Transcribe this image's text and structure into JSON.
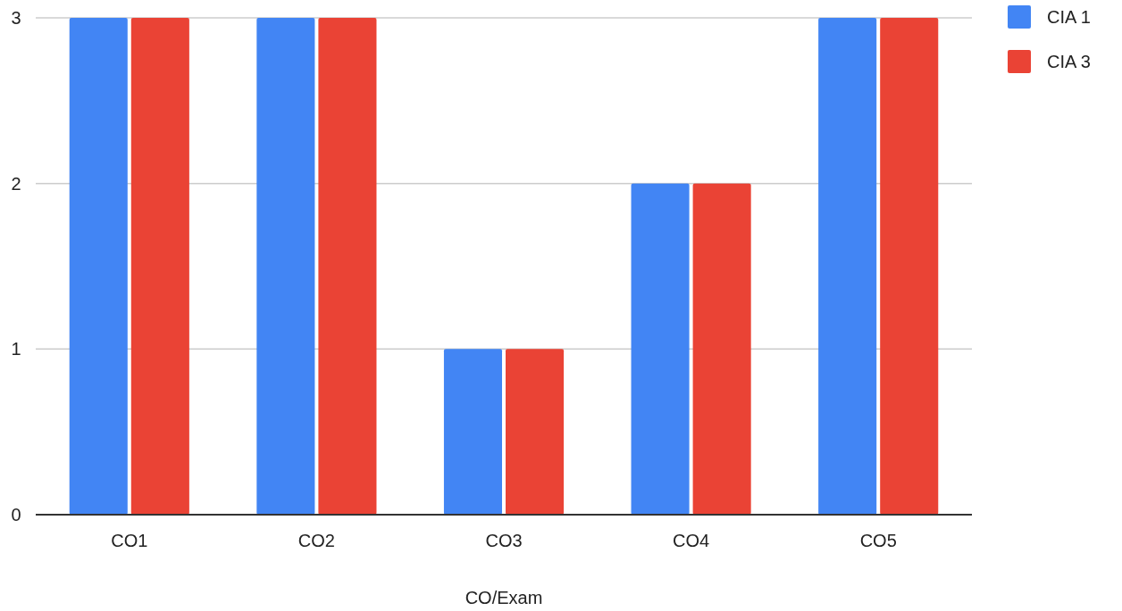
{
  "chart_data": {
    "type": "bar",
    "xlabel": "CO/Exam",
    "categories": [
      "CO1",
      "CO2",
      "CO3",
      "CO4",
      "CO5"
    ],
    "series": [
      {
        "name": "CIA 1",
        "color": "#4285f4",
        "values": [
          3,
          3,
          1,
          2,
          3
        ]
      },
      {
        "name": "CIA 3",
        "color": "#ea4335",
        "values": [
          3,
          3,
          1,
          2,
          3
        ]
      }
    ],
    "ylim": [
      0,
      3
    ],
    "yticks": [
      0,
      1,
      2,
      3
    ],
    "grid": "y",
    "legend": "top right"
  }
}
